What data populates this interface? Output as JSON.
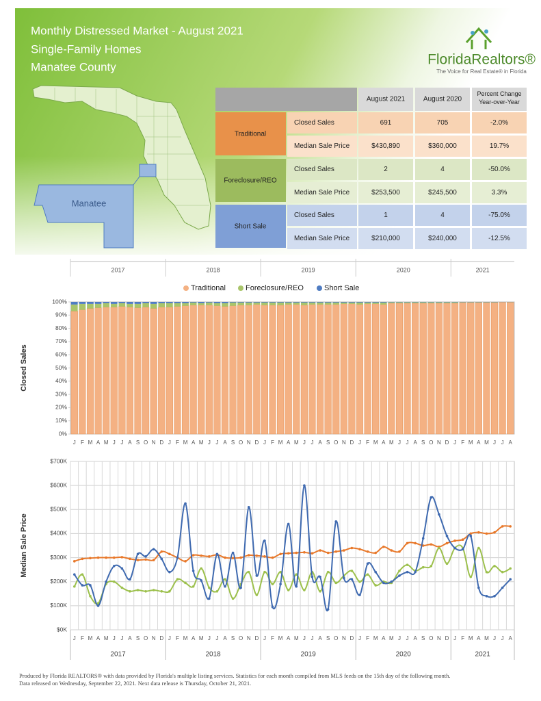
{
  "header": {
    "title": "Monthly Distressed Market - August 2021",
    "subtitle": "Single-Family Homes",
    "region": "Manatee County"
  },
  "logo": {
    "name": "FloridaRealtors®",
    "tagline": "The Voice for Real Estate® in Florida"
  },
  "map": {
    "label": "Manatee"
  },
  "table": {
    "headers": [
      "August 2021",
      "August 2020",
      "Percent Change Year-over-Year"
    ],
    "groups": [
      {
        "name": "Traditional",
        "rows": [
          [
            "Closed Sales",
            "691",
            "705",
            "-2.0%"
          ],
          [
            "Median Sale Price",
            "$430,890",
            "$360,000",
            "19.7%"
          ]
        ]
      },
      {
        "name": "Foreclosure/REO",
        "rows": [
          [
            "Closed Sales",
            "2",
            "4",
            "-50.0%"
          ],
          [
            "Median Sale Price",
            "$253,500",
            "$245,500",
            "3.3%"
          ]
        ]
      },
      {
        "name": "Short Sale",
        "rows": [
          [
            "Closed Sales",
            "1",
            "4",
            "-75.0%"
          ],
          [
            "Median Sale Price",
            "$210,000",
            "$240,000",
            "-12.5%"
          ]
        ]
      }
    ]
  },
  "chart_data": [
    {
      "type": "bar",
      "stacked": true,
      "y_label": "Closed Sales",
      "categories": [
        "J",
        "F",
        "M",
        "A",
        "M",
        "J",
        "J",
        "A",
        "S",
        "O",
        "N",
        "D",
        "J",
        "F",
        "M",
        "A",
        "M",
        "J",
        "J",
        "A",
        "S",
        "O",
        "N",
        "D",
        "J",
        "F",
        "M",
        "A",
        "M",
        "J",
        "J",
        "A",
        "S",
        "O",
        "N",
        "D",
        "J",
        "F",
        "M",
        "A",
        "M",
        "J",
        "J",
        "A",
        "S",
        "O",
        "N",
        "D",
        "J",
        "F",
        "M",
        "A",
        "M",
        "J",
        "J",
        "A"
      ],
      "series": [
        {
          "name": "Traditional",
          "color": "#f4b183",
          "values": [
            93,
            94,
            95,
            95.5,
            96,
            96,
            96.5,
            96,
            95.5,
            96,
            95,
            96,
            96,
            96.5,
            97,
            97.5,
            97.5,
            97.5,
            97,
            96.5,
            97,
            97.5,
            97.5,
            98,
            97.5,
            97.5,
            97.5,
            98,
            98,
            97.5,
            98,
            98,
            98,
            98,
            98.5,
            98.5,
            98,
            98.5,
            98.5,
            98,
            99,
            99,
            99,
            99,
            99,
            99,
            99,
            99,
            99,
            99.5,
            99.5,
            99.5,
            99.5,
            99.5,
            99.8,
            99.7
          ]
        },
        {
          "name": "Foreclosure/REO",
          "color": "#a9c56b",
          "values": [
            5,
            4.5,
            3.5,
            3,
            3,
            2.5,
            2.5,
            2.5,
            3,
            3,
            3.5,
            3,
            3,
            2.5,
            2,
            2,
            1.5,
            2,
            2,
            2.5,
            2.5,
            2,
            2,
            1.5,
            2,
            2,
            2,
            1.5,
            1.5,
            2,
            1.5,
            1.5,
            1.5,
            1.5,
            1,
            1,
            1.5,
            1,
            1,
            1.5,
            0.7,
            0.7,
            0.7,
            0.7,
            0.7,
            0.7,
            0.7,
            0.7,
            0.7,
            0.3,
            0.3,
            0.3,
            0.3,
            0.3,
            0.1,
            0.2
          ]
        },
        {
          "name": "Short Sale",
          "color": "#4f7cc2",
          "values": [
            2,
            1.5,
            1.5,
            1.5,
            1,
            1.5,
            1,
            1.5,
            1.5,
            1,
            1.5,
            1,
            1,
            1,
            1,
            0.5,
            1,
            0.5,
            1,
            1,
            0.5,
            0.5,
            0.5,
            0.5,
            0.5,
            0.5,
            0.5,
            0.5,
            0.5,
            0.5,
            0.5,
            0.5,
            0.5,
            0.5,
            0.5,
            0.5,
            0.5,
            0.5,
            0.5,
            0.5,
            0.3,
            0.3,
            0.3,
            0.3,
            0.3,
            0.3,
            0.3,
            0.3,
            0.3,
            0.2,
            0.2,
            0.2,
            0.2,
            0.2,
            0.1,
            0.1
          ]
        }
      ],
      "ylim": [
        0,
        100
      ],
      "yticks": [
        {
          "value": 0,
          "label": "0%"
        },
        {
          "value": 10,
          "label": "10%"
        },
        {
          "value": 20,
          "label": "20%"
        },
        {
          "value": 30,
          "label": "30%"
        },
        {
          "value": 40,
          "label": "40%"
        },
        {
          "value": 50,
          "label": "50%"
        },
        {
          "value": 60,
          "label": "60%"
        },
        {
          "value": 70,
          "label": "70%"
        },
        {
          "value": 80,
          "label": "80%"
        },
        {
          "value": 90,
          "label": "90%"
        },
        {
          "value": 100,
          "label": "100%"
        }
      ],
      "legend": "top"
    },
    {
      "type": "line",
      "y_label": "Median Sale Price",
      "grid": true,
      "categories": [
        "J",
        "F",
        "M",
        "A",
        "M",
        "J",
        "J",
        "A",
        "S",
        "O",
        "N",
        "D",
        "J",
        "F",
        "M",
        "A",
        "M",
        "J",
        "J",
        "A",
        "S",
        "O",
        "N",
        "D",
        "J",
        "F",
        "M",
        "A",
        "M",
        "J",
        "J",
        "A",
        "S",
        "O",
        "N",
        "D",
        "J",
        "F",
        "M",
        "A",
        "M",
        "J",
        "J",
        "A",
        "S",
        "O",
        "N",
        "D",
        "J",
        "F",
        "M",
        "A",
        "M",
        "J",
        "J",
        "A"
      ],
      "year_labels": [
        "2017",
        "2018",
        "2019",
        "2020",
        "2021"
      ],
      "series": [
        {
          "name": "Traditional",
          "color": "#e8782a",
          "values": [
            285,
            295,
            298,
            300,
            300,
            300,
            302,
            295,
            290,
            292,
            290,
            325,
            315,
            300,
            285,
            310,
            308,
            305,
            312,
            300,
            298,
            300,
            310,
            308,
            305,
            300,
            315,
            318,
            320,
            322,
            318,
            330,
            320,
            325,
            330,
            340,
            335,
            325,
            320,
            345,
            330,
            325,
            360,
            360,
            350,
            355,
            345,
            360,
            370,
            375,
            400,
            405,
            400,
            405,
            430,
            430
          ]
        },
        {
          "name": "Foreclosure/REO",
          "color": "#9cc04c",
          "values": [
            180,
            230,
            140,
            110,
            190,
            200,
            175,
            160,
            165,
            160,
            165,
            160,
            160,
            210,
            195,
            180,
            255,
            175,
            160,
            210,
            130,
            190,
            240,
            145,
            240,
            190,
            240,
            165,
            230,
            165,
            240,
            160,
            240,
            195,
            225,
            245,
            200,
            230,
            185,
            200,
            195,
            245,
            270,
            245,
            260,
            265,
            340,
            275,
            340,
            340,
            220,
            340,
            240,
            265,
            240,
            255
          ]
        },
        {
          "name": "Short Sale",
          "color": "#3f6ab0",
          "values": [
            230,
            185,
            185,
            100,
            200,
            265,
            255,
            210,
            315,
            305,
            335,
            295,
            240,
            300,
            525,
            245,
            205,
            130,
            315,
            180,
            320,
            175,
            510,
            225,
            370,
            95,
            190,
            440,
            180,
            600,
            220,
            220,
            85,
            450,
            215,
            210,
            145,
            275,
            240,
            195,
            200,
            225,
            240,
            240,
            380,
            550,
            480,
            390,
            340,
            335,
            390,
            175,
            140,
            140,
            175,
            210
          ]
        }
      ],
      "ylim": [
        0,
        700
      ],
      "yticks": [
        {
          "value": 0,
          "label": "$0K"
        },
        {
          "value": 100,
          "label": "$100K"
        },
        {
          "value": 200,
          "label": "$200K"
        },
        {
          "value": 300,
          "label": "$300K"
        },
        {
          "value": 400,
          "label": "$400K"
        },
        {
          "value": 500,
          "label": "$500K"
        },
        {
          "value": 600,
          "label": "$600K"
        },
        {
          "value": 700,
          "label": "$700K"
        }
      ]
    }
  ],
  "footer": [
    "Produced by Florida REALTORS® with data provided by Florida's multiple listing services. Statistics for each month compiled from MLS feeds on the 15th day of the following month.",
    "Data released on Wednesday, September 22, 2021. Next data release is Thursday, October 21, 2021."
  ]
}
